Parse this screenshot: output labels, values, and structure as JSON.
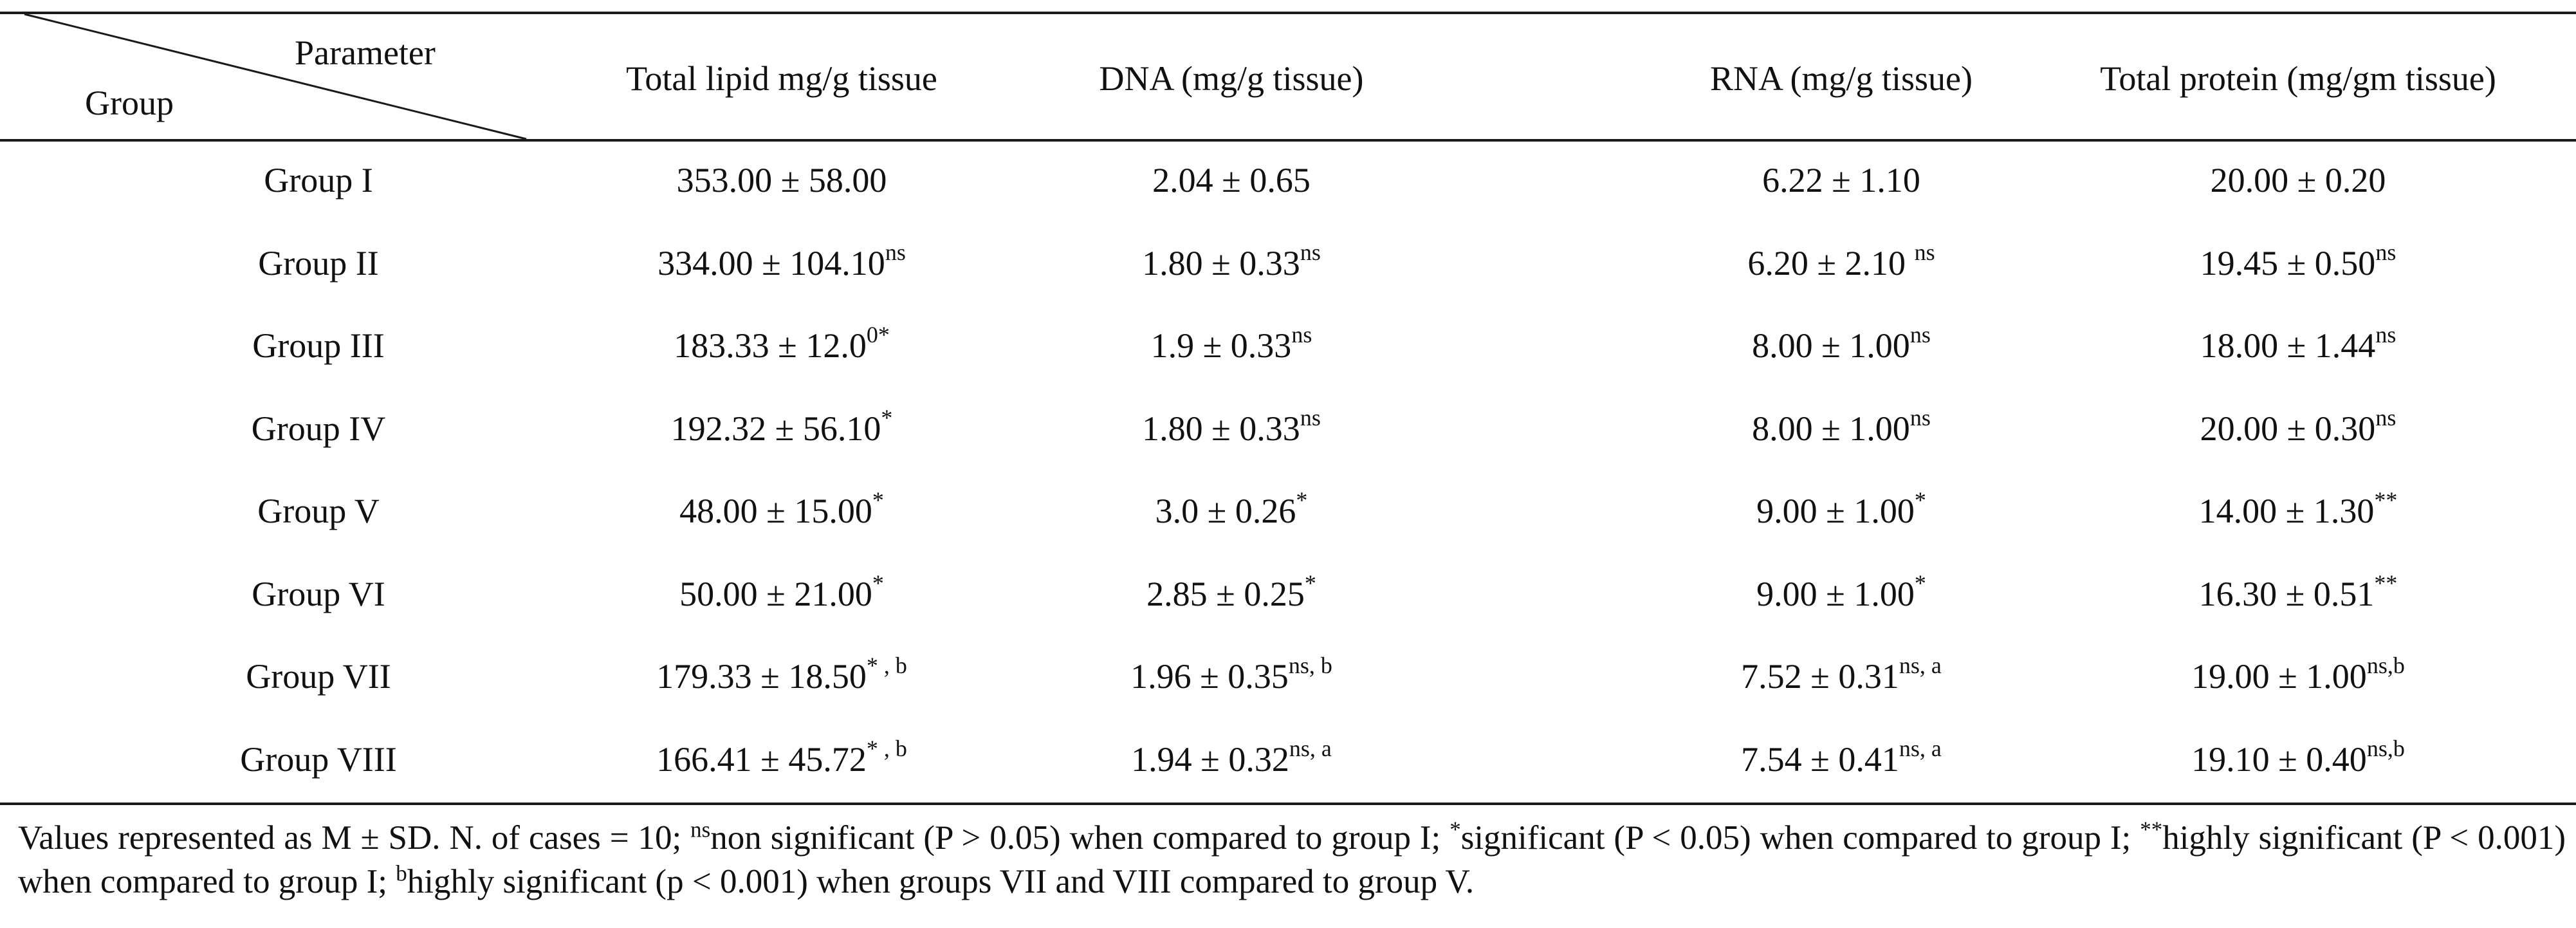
{
  "header": {
    "parameter_label": "Parameter",
    "group_label": "Group",
    "columns": [
      "Total lipid mg/g tissue",
      "DNA (mg/g tissue)",
      "RNA (mg/g tissue)",
      "Total protein (mg/gm tissue)"
    ]
  },
  "rows": [
    {
      "group": "Group I",
      "cells": [
        {
          "v": "353.00 ± 58.00",
          "s": ""
        },
        {
          "v": "2.04 ± 0.65",
          "s": ""
        },
        {
          "v": "6.22 ± 1.10",
          "s": ""
        },
        {
          "v": "20.00 ± 0.20",
          "s": ""
        }
      ]
    },
    {
      "group": "Group II",
      "cells": [
        {
          "v": "334.00 ± 104.10",
          "s": "ns"
        },
        {
          "v": "1.80 ± 0.33",
          "s": "ns"
        },
        {
          "v": "6.20 ± 2.10 ",
          "s": "ns"
        },
        {
          "v": "19.45 ± 0.50",
          "s": "ns"
        }
      ]
    },
    {
      "group": "Group III",
      "cells": [
        {
          "v": "183.33 ± 12.0",
          "s": "0*"
        },
        {
          "v": "1.9 ± 0.33",
          "s": "ns"
        },
        {
          "v": "8.00 ± 1.00",
          "s": "ns"
        },
        {
          "v": "18.00 ± 1.44",
          "s": "ns"
        }
      ]
    },
    {
      "group": "Group IV",
      "cells": [
        {
          "v": "192.32 ± 56.10",
          "s": "*"
        },
        {
          "v": "1.80 ± 0.33",
          "s": "ns"
        },
        {
          "v": "8.00 ± 1.00",
          "s": "ns"
        },
        {
          "v": "20.00 ± 0.30",
          "s": "ns"
        }
      ]
    },
    {
      "group": "Group V",
      "cells": [
        {
          "v": "48.00 ± 15.00",
          "s": "*"
        },
        {
          "v": "3.0 ± 0.26",
          "s": "*"
        },
        {
          "v": "9.00 ± 1.00",
          "s": "*"
        },
        {
          "v": "14.00 ± 1.30",
          "s": "**"
        }
      ]
    },
    {
      "group": "Group VI",
      "cells": [
        {
          "v": "50.00 ± 21.00",
          "s": "*"
        },
        {
          "v": "2.85 ± 0.25",
          "s": "*"
        },
        {
          "v": "9.00 ± 1.00",
          "s": "*"
        },
        {
          "v": "16.30 ± 0.51",
          "s": "**"
        }
      ]
    },
    {
      "group": "Group VII",
      "cells": [
        {
          "v": "179.33 ± 18.50",
          "s": "* , b"
        },
        {
          "v": "1.96 ± 0.35",
          "s": "ns, b"
        },
        {
          "v": "7.52 ± 0.31",
          "s": "ns, a"
        },
        {
          "v": "19.00 ± 1.00",
          "s": "ns,b"
        }
      ]
    },
    {
      "group": "Group VIII",
      "cells": [
        {
          "v": "166.41 ± 45.72",
          "s": "* , b"
        },
        {
          "v": "1.94 ± 0.32",
          "s": "ns, a"
        },
        {
          "v": "7.54 ± 0.41",
          "s": "ns, a"
        },
        {
          "v": "19.10 ± 0.40",
          "s": "ns,b"
        }
      ]
    }
  ],
  "footnote": {
    "p1": "Values represented as M ± SD. N. of cases = 10; ",
    "s1": "ns",
    "p2": "non significant (P > 0.05) when compared to group I; ",
    "s2": "*",
    "p3": "significant (P < 0.05) when compared to group I; ",
    "s3": "**",
    "p4": "highly significant (P < 0.001) when compared to group I; ",
    "s4": "b",
    "p5": "highly significant (p < 0.001) when groups VII and VIII compared to group V."
  }
}
